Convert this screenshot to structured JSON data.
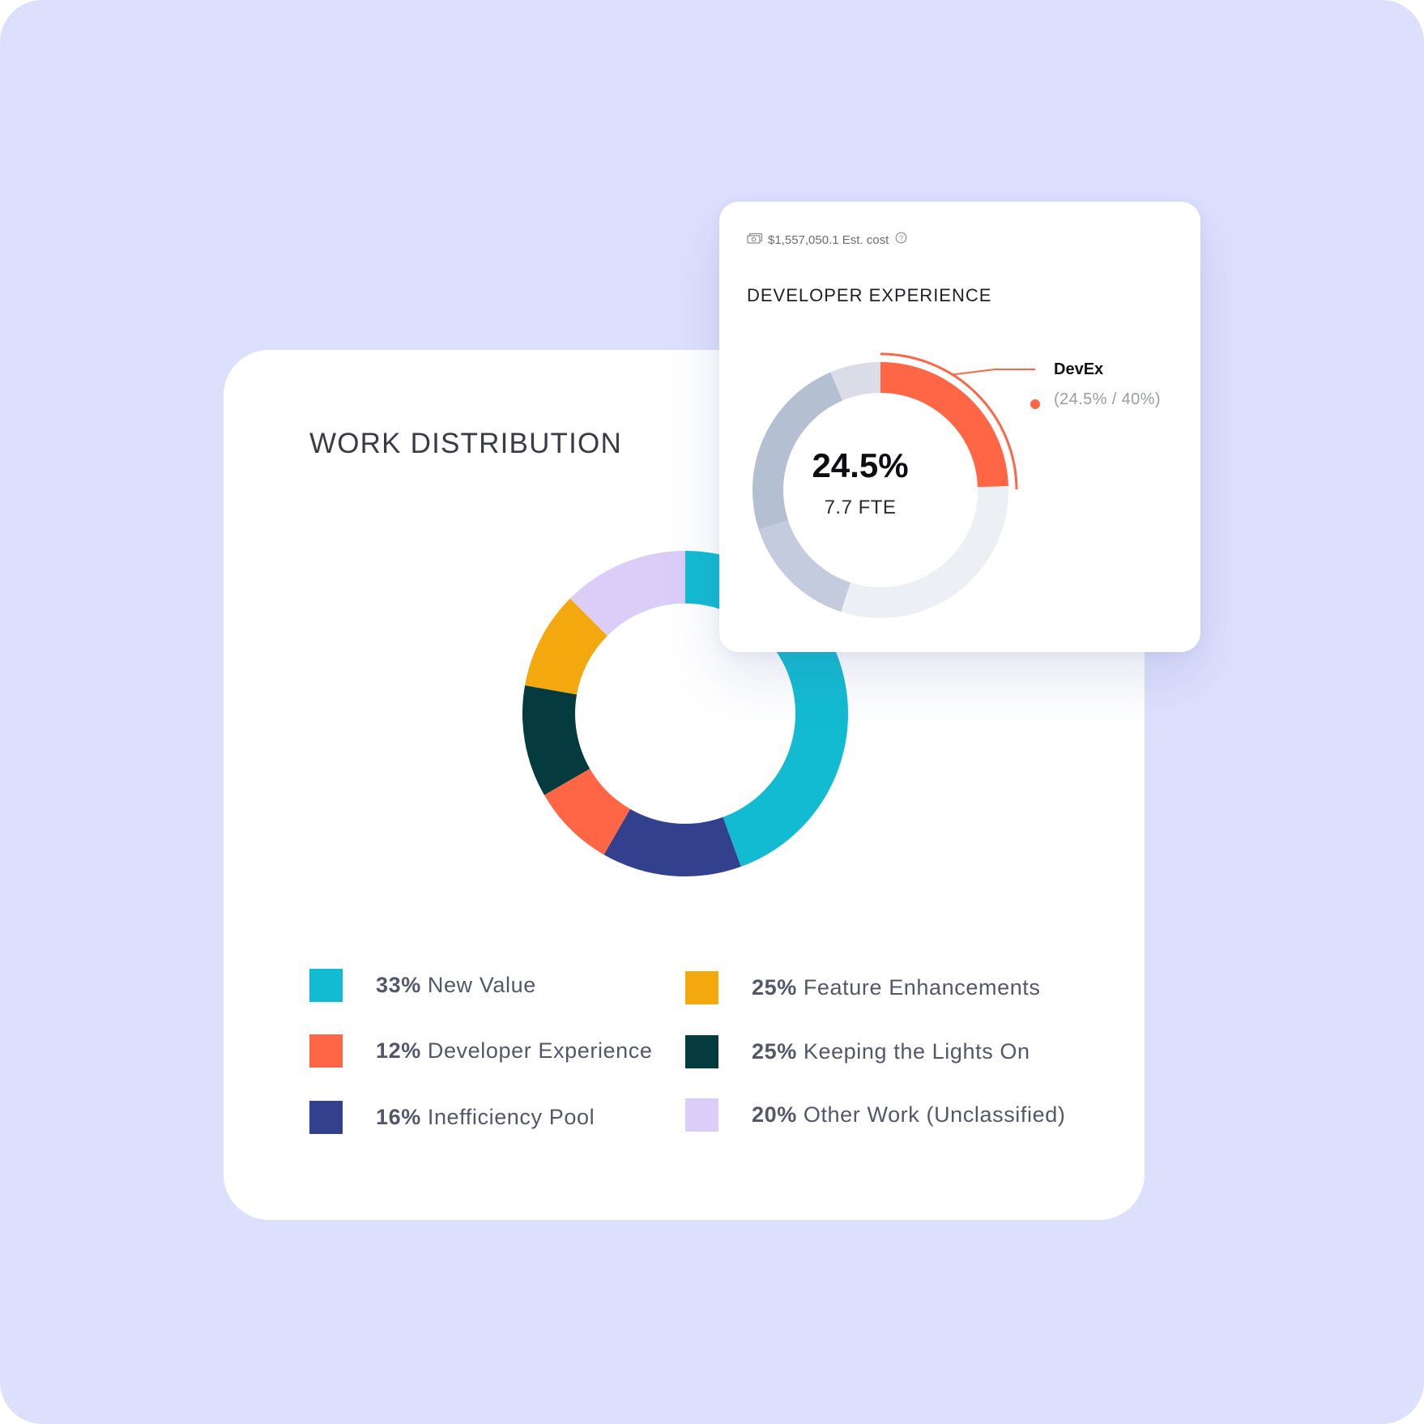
{
  "colors": {
    "background": "#dde0fd",
    "new_value": "#12bbd1",
    "developer_experience": "#ff6645",
    "inefficiency_pool": "#33408e",
    "feature_enhancements": "#f3a80d",
    "keeping_lights_on": "#053b3e",
    "other_work": "#dacdf8",
    "popup_track": "#eceff4",
    "popup_grey_1": "#c4cbdd",
    "popup_grey_2": "#b4bfd1",
    "popup_grey_3": "#dadde7"
  },
  "work_distribution": {
    "title": "WORK DISTRIBUTION",
    "legend": [
      {
        "pct": "33%",
        "label": "New Value"
      },
      {
        "pct": "12%",
        "label": "Developer Experience"
      },
      {
        "pct": "16%",
        "label": "Inefficiency Pool"
      },
      {
        "pct": "25%",
        "label": "Feature Enhancements"
      },
      {
        "pct": "25%",
        "label": "Keeping the Lights On"
      },
      {
        "pct": "20%",
        "label": "Other Work (Unclassified)"
      }
    ]
  },
  "popup": {
    "cost_text": "$1,557,050.1 Est. cost",
    "cost_icon": "money-icon",
    "help_icon": "help-circle-icon",
    "title": "DEVELOPER EXPERIENCE",
    "center_value": "24.5%",
    "center_sub": "7.7 FTE",
    "callout_label": "DevEx",
    "callout_values": "(24.5% / 40%)"
  },
  "chart_data": [
    {
      "type": "pie",
      "title": "WORK DISTRIBUTION",
      "donut": true,
      "start_angle_deg": 0,
      "slices": [
        {
          "name": "New Value",
          "legend_pct": 33,
          "arc_deg": 160,
          "color": "#12bbd1"
        },
        {
          "name": "Inefficiency Pool",
          "legend_pct": 16,
          "arc_deg": 50,
          "color": "#33408e"
        },
        {
          "name": "Developer Experience",
          "legend_pct": 12,
          "arc_deg": 30,
          "color": "#ff6645"
        },
        {
          "name": "Keeping the Lights On",
          "legend_pct": 25,
          "arc_deg": 40,
          "color": "#053b3e"
        },
        {
          "name": "Feature Enhancements",
          "legend_pct": 25,
          "arc_deg": 35,
          "color": "#f3a80d"
        },
        {
          "name": "Other Work (Unclassified)",
          "legend_pct": 20,
          "arc_deg": 45,
          "color": "#dacdf8"
        }
      ]
    },
    {
      "type": "pie",
      "title": "DEVELOPER EXPERIENCE",
      "donut": true,
      "highlight": {
        "name": "DevEx",
        "value_pct": 24.5,
        "target_pct": 40,
        "color": "#ff6645"
      },
      "other_segments_deg": [
        {
          "from": 198,
          "to": 252,
          "color": "#c4cbdd"
        },
        {
          "from": 252,
          "to": 308,
          "color": "#b4bfd1"
        },
        {
          "from": 308,
          "to": 337,
          "color": "#b4bfd1"
        },
        {
          "from": 337,
          "to": 360,
          "color": "#dadde7"
        }
      ]
    }
  ]
}
